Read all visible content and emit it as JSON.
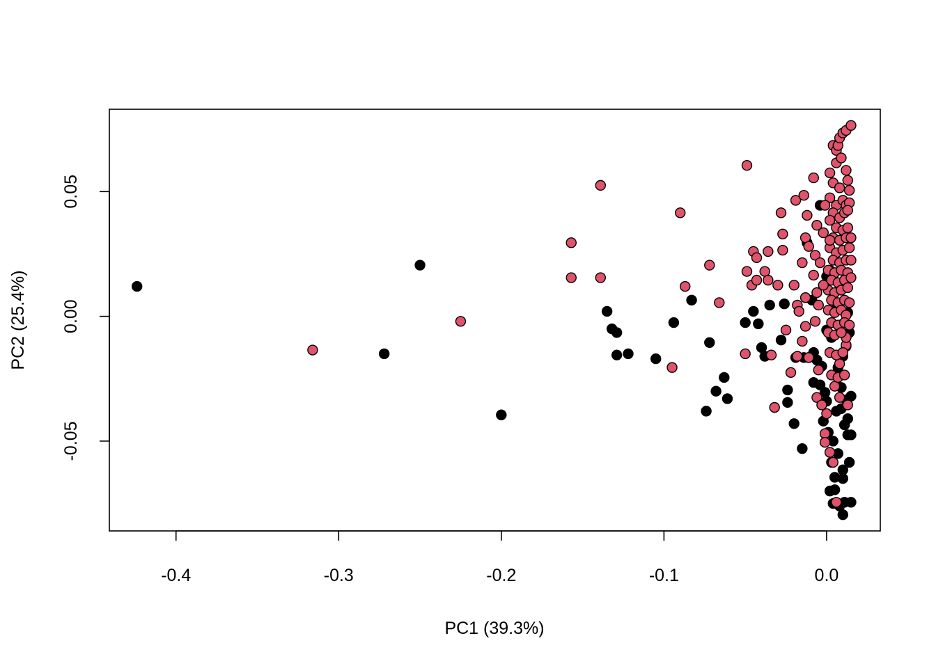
{
  "chart_data": {
    "type": "scatter",
    "title": "",
    "xlabel": "PC1 (39.3%)",
    "ylabel": "PC2 (25.4%)",
    "xlim": [
      -0.441,
      0.033
    ],
    "ylim": [
      -0.086,
      0.083
    ],
    "x_ticks": [
      {
        "value": -0.4,
        "label": "-0.4"
      },
      {
        "value": -0.3,
        "label": "-0.3"
      },
      {
        "value": -0.2,
        "label": "-0.2"
      },
      {
        "value": -0.1,
        "label": "-0.1"
      },
      {
        "value": 0.0,
        "label": "0.0"
      }
    ],
    "y_ticks": [
      {
        "value": 0.05,
        "label": "0.05"
      },
      {
        "value": 0.0,
        "label": "0.00"
      },
      {
        "value": -0.05,
        "label": "-0.05"
      }
    ],
    "colors": {
      "group_black": "#000000",
      "group_red": "#DF536B"
    },
    "series": [
      {
        "color": "#000000",
        "points": [
          [
            -0.424,
            0.012
          ],
          [
            -0.25,
            0.0205
          ],
          [
            -0.272,
            -0.015
          ],
          [
            -0.2,
            -0.0395
          ],
          [
            -0.135,
            0.002
          ],
          [
            -0.132,
            -0.005
          ],
          [
            -0.129,
            -0.0065
          ],
          [
            -0.129,
            -0.0155
          ],
          [
            -0.122,
            -0.015
          ],
          [
            -0.105,
            -0.017
          ],
          [
            -0.094,
            -0.0025
          ],
          [
            -0.083,
            0.0065
          ],
          [
            -0.072,
            -0.0105
          ],
          [
            -0.063,
            -0.0245
          ],
          [
            -0.068,
            -0.03
          ],
          [
            -0.074,
            -0.038
          ],
          [
            -0.061,
            -0.033
          ],
          [
            -0.05,
            -0.0025
          ],
          [
            -0.045,
            0.002
          ],
          [
            -0.042,
            -0.003
          ],
          [
            -0.035,
            0.0045
          ],
          [
            -0.026,
            0.005
          ],
          [
            -0.04,
            -0.0125
          ],
          [
            -0.038,
            -0.016
          ],
          [
            -0.028,
            -0.0095
          ],
          [
            -0.024,
            -0.0295
          ],
          [
            -0.024,
            -0.0345
          ],
          [
            -0.02,
            -0.043
          ],
          [
            -0.015,
            -0.053
          ],
          [
            -0.019,
            -0.0165
          ],
          [
            -0.014,
            -0.0165
          ],
          [
            -0.011,
            -0.0165
          ],
          [
            -0.008,
            -0.0145
          ],
          [
            -0.006,
            -0.0175
          ],
          [
            -0.003,
            -0.02
          ],
          [
            -0.008,
            -0.0265
          ],
          [
            -0.004,
            -0.0275
          ],
          [
            -0.001,
            -0.0305
          ],
          [
            0.0,
            -0.034
          ],
          [
            -0.002,
            -0.042
          ],
          [
            0.001,
            -0.0465
          ],
          [
            0.004,
            -0.05
          ],
          [
            0.007,
            -0.055
          ],
          [
            0.003,
            -0.0585
          ],
          [
            0.01,
            -0.0615
          ],
          [
            0.014,
            -0.0585
          ],
          [
            0.005,
            -0.0645
          ],
          [
            0.002,
            -0.07
          ],
          [
            0.01,
            -0.065
          ],
          [
            0.005,
            -0.0695
          ],
          [
            0.008,
            -0.076
          ],
          [
            0.011,
            -0.0745
          ],
          [
            0.015,
            -0.0745
          ],
          [
            0.01,
            -0.0795
          ],
          [
            0.004,
            -0.075
          ],
          [
            0.013,
            -0.0475
          ],
          [
            0.015,
            -0.0475
          ],
          [
            0.011,
            -0.0435
          ],
          [
            0.006,
            -0.038
          ],
          [
            0.013,
            -0.041
          ],
          [
            0.0,
            -0.0055
          ],
          [
            0.003,
            -0.0085
          ],
          [
            0.008,
            -0.0035
          ],
          [
            0.011,
            -0.0025
          ],
          [
            0.013,
            0.0015
          ],
          [
            0.014,
            -0.0065
          ],
          [
            0.005,
            0.0025
          ],
          [
            0.007,
            -0.0205
          ],
          [
            0.01,
            -0.016
          ],
          [
            0.012,
            -0.012
          ],
          [
            0.009,
            -0.0285
          ],
          [
            0.012,
            -0.0335
          ],
          [
            0.015,
            -0.032
          ],
          [
            0.009,
            -0.037
          ],
          [
            -0.004,
            0.0445
          ],
          [
            -0.012,
            0.0295
          ],
          [
            -0.009,
            0.0065
          ],
          [
            0.0,
            0.016
          ],
          [
            0.002,
            0.0185
          ]
        ]
      },
      {
        "color": "#DF536B",
        "points": [
          [
            -0.316,
            -0.0135
          ],
          [
            -0.225,
            -0.002
          ],
          [
            -0.157,
            0.0295
          ],
          [
            -0.157,
            0.0155
          ],
          [
            -0.139,
            0.0525
          ],
          [
            -0.139,
            0.0155
          ],
          [
            -0.09,
            0.0415
          ],
          [
            -0.087,
            0.012
          ],
          [
            -0.072,
            0.0205
          ],
          [
            -0.066,
            0.0055
          ],
          [
            -0.095,
            -0.0205
          ],
          [
            -0.05,
            -0.015
          ],
          [
            -0.049,
            0.0605
          ],
          [
            -0.049,
            0.018
          ],
          [
            -0.045,
            0.026
          ],
          [
            -0.043,
            0.0235
          ],
          [
            -0.046,
            0.0125
          ],
          [
            -0.043,
            0.0145
          ],
          [
            -0.038,
            0.018
          ],
          [
            -0.036,
            0.0145
          ],
          [
            -0.036,
            0.026
          ],
          [
            -0.03,
            0.0125
          ],
          [
            -0.028,
            0.0415
          ],
          [
            -0.027,
            0.033
          ],
          [
            -0.027,
            0.0265
          ],
          [
            -0.019,
            0.0465
          ],
          [
            -0.02,
            0.0125
          ],
          [
            -0.018,
            0.0045
          ],
          [
            -0.017,
            0.002
          ],
          [
            -0.014,
            0.0485
          ],
          [
            -0.012,
            0.0405
          ],
          [
            -0.008,
            0.0555
          ],
          [
            -0.013,
            0.0315
          ],
          [
            -0.011,
            0.028
          ],
          [
            -0.015,
            0.0215
          ],
          [
            -0.007,
            0.0245
          ],
          [
            -0.008,
            0.0165
          ],
          [
            -0.013,
            0.0075
          ],
          [
            -0.006,
            0.0095
          ],
          [
            -0.013,
            -0.004
          ],
          [
            -0.007,
            -0.002
          ],
          [
            -0.015,
            -0.01
          ],
          [
            -0.034,
            -0.0155
          ],
          [
            -0.025,
            -0.0055
          ],
          [
            -0.022,
            -0.0225
          ],
          [
            -0.032,
            -0.0365
          ],
          [
            -0.018,
            -0.016
          ],
          [
            -0.011,
            -0.0165
          ],
          [
            -0.005,
            -0.0215
          ],
          [
            -0.006,
            -0.0325
          ],
          [
            -0.003,
            -0.0355
          ],
          [
            0.0,
            -0.039
          ],
          [
            -0.001,
            -0.047
          ],
          [
            -0.001,
            -0.0505
          ],
          [
            0.002,
            -0.0545
          ],
          [
            0.004,
            -0.0585
          ],
          [
            0.006,
            -0.0745
          ],
          [
            0.013,
            -0.0355
          ],
          [
            0.005,
            -0.028
          ],
          [
            0.008,
            -0.019
          ],
          [
            0.012,
            -0.0115
          ],
          [
            0.012,
            -0.0085
          ],
          [
            0.004,
            0.0685
          ],
          [
            0.006,
            0.0665
          ],
          [
            0.007,
            0.0685
          ],
          [
            0.008,
            0.0715
          ],
          [
            0.01,
            0.0735
          ],
          [
            0.012,
            0.0745
          ],
          [
            0.015,
            0.0765
          ],
          [
            0.002,
            0.0575
          ],
          [
            0.006,
            0.0615
          ],
          [
            0.009,
            0.0635
          ],
          [
            0.012,
            0.0585
          ],
          [
            0.004,
            0.0535
          ],
          [
            0.008,
            0.0515
          ],
          [
            0.013,
            0.0545
          ],
          [
            0.014,
            0.0505
          ],
          [
            0.002,
            0.0475
          ],
          [
            0.006,
            0.0445
          ],
          [
            0.01,
            0.0465
          ],
          [
            0.012,
            0.0445
          ],
          [
            0.014,
            0.0455
          ],
          [
            0.004,
            0.0415
          ],
          [
            0.008,
            0.0395
          ],
          [
            0.011,
            0.0415
          ],
          [
            0.013,
            0.0425
          ],
          [
            0.002,
            0.0385
          ],
          [
            0.006,
            0.0355
          ],
          [
            0.01,
            0.0345
          ],
          [
            0.013,
            0.0355
          ],
          [
            0.004,
            0.0315
          ],
          [
            0.008,
            0.0305
          ],
          [
            0.012,
            0.0315
          ],
          [
            0.015,
            0.0315
          ],
          [
            0.002,
            0.0275
          ],
          [
            0.006,
            0.0255
          ],
          [
            0.01,
            0.0265
          ],
          [
            0.014,
            0.0275
          ],
          [
            0.004,
            0.0225
          ],
          [
            0.008,
            0.0215
          ],
          [
            0.012,
            0.0225
          ],
          [
            0.015,
            0.0225
          ],
          [
            0.001,
            0.0185
          ],
          [
            0.005,
            0.0175
          ],
          [
            0.009,
            0.0185
          ],
          [
            0.013,
            0.0175
          ],
          [
            0.003,
            0.0145
          ],
          [
            0.007,
            0.0135
          ],
          [
            0.011,
            0.0145
          ],
          [
            0.015,
            0.0155
          ],
          [
            0.001,
            0.0105
          ],
          [
            0.005,
            0.0095
          ],
          [
            0.009,
            0.0105
          ],
          [
            0.013,
            0.0115
          ],
          [
            0.003,
            0.0065
          ],
          [
            0.007,
            0.0055
          ],
          [
            0.011,
            0.0065
          ],
          [
            0.014,
            0.0055
          ],
          [
            0.001,
            0.0025
          ],
          [
            0.005,
            0.0015
          ],
          [
            0.009,
            0.0025
          ],
          [
            0.012,
            0.0005
          ],
          [
            0.003,
            -0.0025
          ],
          [
            0.007,
            -0.0035
          ],
          [
            0.011,
            -0.0025
          ],
          [
            0.014,
            -0.0035
          ],
          [
            0.001,
            -0.0065
          ],
          [
            0.005,
            -0.0075
          ],
          [
            0.009,
            -0.0065
          ],
          [
            0.002,
            -0.0145
          ],
          [
            0.006,
            -0.0155
          ],
          [
            0.01,
            -0.0145
          ],
          [
            0.003,
            -0.0235
          ],
          [
            0.007,
            -0.0245
          ],
          [
            0.011,
            -0.0235
          ],
          [
            0.008,
            -0.0325
          ],
          [
            0.002,
            0.0305
          ],
          [
            -0.002,
            0.0335
          ],
          [
            -0.004,
            0.0215
          ],
          [
            -0.002,
            0.0125
          ],
          [
            -0.005,
            0.0045
          ],
          [
            -0.006,
            0.0365
          ],
          [
            -0.001,
            0.0445
          ]
        ]
      }
    ]
  }
}
